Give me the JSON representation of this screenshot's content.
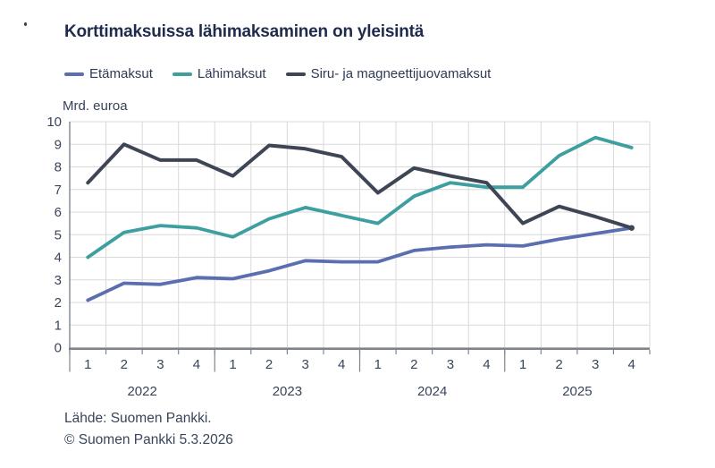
{
  "page": {
    "title": "Korttimaksuissa lähimaksaminen on yleisintä"
  },
  "footer": {
    "source": "Lähde: Suomen Pankki.",
    "copyright": "© Suomen Pankki 5.3.2026"
  },
  "chart_data": {
    "type": "line",
    "title": "Korttimaksuissa lähimaksaminen on yleisintä",
    "xlabel": "",
    "ylabel": "Mrd. euroa",
    "ylim": [
      0,
      10
    ],
    "ytick_interval": 1,
    "grid": true,
    "legend_position": "top",
    "categories": [
      "2022 Q1",
      "2022 Q2",
      "2022 Q3",
      "2022 Q4",
      "2023 Q1",
      "2023 Q2",
      "2023 Q3",
      "2023 Q4",
      "2024 Q1",
      "2024 Q2",
      "2024 Q3",
      "2024 Q4",
      "2025 Q1",
      "2025 Q2",
      "2025 Q3",
      "2025 Q4"
    ],
    "xticks": [
      "1",
      "2",
      "3",
      "4",
      "1",
      "2",
      "3",
      "4",
      "1",
      "2",
      "3",
      "4",
      "1",
      "2",
      "3",
      "4"
    ],
    "year_groups": [
      "2022",
      "2023",
      "2024",
      "2025"
    ],
    "series": [
      {
        "name": "Etämaksut",
        "color": "#5a6eb0",
        "values": [
          2.1,
          2.85,
          2.8,
          3.1,
          3.05,
          3.4,
          3.85,
          3.8,
          3.8,
          4.3,
          4.45,
          4.55,
          4.5,
          4.8,
          5.05,
          5.3
        ]
      },
      {
        "name": "Lähimaksut",
        "color": "#3e9fa0",
        "values": [
          4.0,
          5.1,
          5.4,
          5.3,
          4.9,
          5.7,
          6.2,
          5.85,
          5.5,
          6.7,
          7.3,
          7.1,
          7.1,
          8.5,
          9.3,
          8.85
        ]
      },
      {
        "name": "Siru- ja magneettijuovamaksut",
        "color": "#3e4655",
        "end_marker": true,
        "values": [
          7.3,
          9.0,
          8.3,
          8.3,
          7.6,
          8.95,
          8.8,
          8.45,
          6.85,
          7.95,
          7.6,
          7.3,
          5.5,
          6.25,
          5.8,
          5.3
        ]
      }
    ],
    "style": {
      "grid_color": "#d9d9d9",
      "axis_color": "#7f848c",
      "tick_label_color": "#39455a",
      "title_color": "#1f2b4c"
    }
  }
}
